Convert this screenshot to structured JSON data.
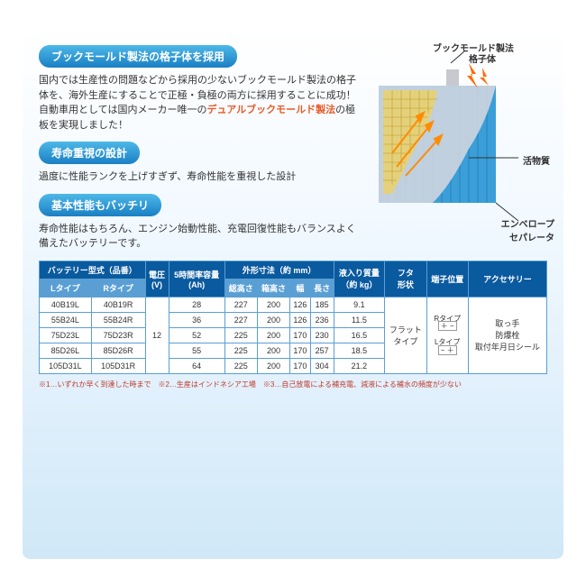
{
  "sections": [
    {
      "title": "ブックモールド製法の格子体を採用",
      "body": "国内では生産性の問題などから採用の少ないブックモールド製法の格子体を、海外生産にすることで正極・負極の両方に採用することに成功！\n自動車用としては国内メーカー唯一の",
      "highlight": "デュアルブックモールド製法",
      "body_after": "の極板を実現しました！"
    },
    {
      "title": "寿命重視の設計",
      "body": "過度に性能ランクを上げすぎず、寿命性能を重視した設計"
    },
    {
      "title": "基本性能もバッチリ",
      "body": "寿命性能はもちろん、エンジン始動性能、充電回復性能もバランスよく備えたバッテリーです。"
    }
  ],
  "diagram": {
    "label1": "ブックモールド製法",
    "label1b": "格子体",
    "label2": "活物質",
    "label3": "エンベロープ",
    "label3b": "セパレータ",
    "colors": {
      "grid": "#e8d070",
      "plate": "#3a9fd8",
      "coat": "#d8d8e0",
      "spark": "#ff6b00"
    }
  },
  "table": {
    "headers": {
      "model": "バッテリー型式（品番）",
      "ltype": "Lタイプ",
      "rtype": "Rタイプ",
      "voltage": "電圧\n(V)",
      "capacity": "5時間率容量\n(Ah)",
      "dims": "外形寸法（約 mm）",
      "h1": "総高さ",
      "h2": "箱高さ",
      "w": "幅",
      "l": "長さ",
      "weight": "液入り質量\n（約 kg）",
      "lid": "フタ\n形状",
      "terminal": "端子位置",
      "accessory": "アクセサリー"
    },
    "voltage_val": "12",
    "lid_val": "フラット\nタイプ",
    "rows": [
      {
        "l": "40B19L",
        "r": "40B19R",
        "ah": "28",
        "th": "227",
        "bh": "200",
        "w": "126",
        "len": "185",
        "wt": "9.1"
      },
      {
        "l": "55B24L",
        "r": "55B24R",
        "ah": "36",
        "th": "227",
        "bh": "200",
        "w": "126",
        "len": "236",
        "wt": "11.5"
      },
      {
        "l": "75D23L",
        "r": "75D23R",
        "ah": "52",
        "th": "225",
        "bh": "200",
        "w": "170",
        "len": "230",
        "wt": "16.5"
      },
      {
        "l": "85D26L",
        "r": "85D26R",
        "ah": "55",
        "th": "225",
        "bh": "200",
        "w": "170",
        "len": "257",
        "wt": "18.5"
      },
      {
        "l": "105D31L",
        "r": "105D31R",
        "ah": "64",
        "th": "225",
        "bh": "200",
        "w": "170",
        "len": "304",
        "wt": "21.2"
      }
    ],
    "terminal_r": "Rタイプ",
    "terminal_l": "Lタイプ",
    "accessory_val": "取っ手\n防爆栓\n取付年月日シール"
  },
  "footnote": "※1…いずれか早く到達した時まで　※2…生産はインドネシア工場　※3…自己放電による補充電、減液による補水の頻度が少ない"
}
